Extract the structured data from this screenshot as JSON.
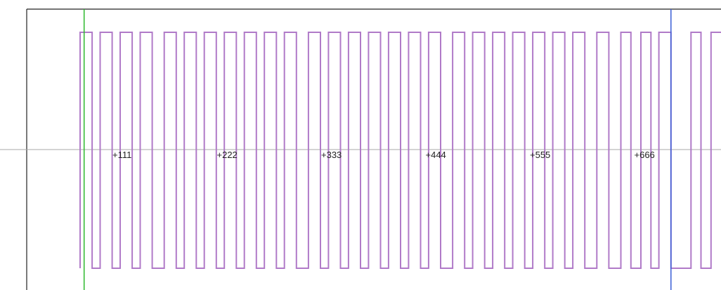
{
  "chart_data": {
    "type": "line",
    "title": "",
    "xlabel": "",
    "ylabel": "",
    "grid": false,
    "legend": "none",
    "x_tick_labels": [
      "+111",
      "+222",
      "+333",
      "+444",
      "+555",
      "+666"
    ],
    "x_ticks": [
      111,
      222,
      333,
      444,
      555,
      666
    ],
    "xlim": [
      -80,
      640
    ],
    "ylim": [
      -1.2,
      1.2
    ],
    "series": [
      {
        "color": "#b07ac8",
        "style": "square-wave",
        "high": 1,
        "low": -1,
        "edges": [
          0,
          12,
          20,
          32,
          40,
          52,
          60,
          72,
          84,
          96,
          104,
          116,
          124,
          136,
          144,
          156,
          164,
          176,
          184,
          196,
          204,
          216,
          228,
          240,
          248,
          260,
          268,
          280,
          288,
          300,
          308,
          320,
          328,
          340,
          348,
          360,
          372,
          384,
          392,
          404,
          412,
          424,
          432,
          444,
          452,
          464,
          472,
          484,
          492,
          504,
          516,
          528,
          540,
          550,
          560,
          570,
          578,
          590,
          610,
          620,
          630,
          644
        ]
      }
    ],
    "cursors": [
      {
        "x": 4,
        "color": "#2eb82e"
      },
      {
        "x": 590,
        "color": "#3a5fd6"
      }
    ],
    "colors": {
      "axis": "#222222",
      "zero_line": "#a8a8a8"
    }
  }
}
